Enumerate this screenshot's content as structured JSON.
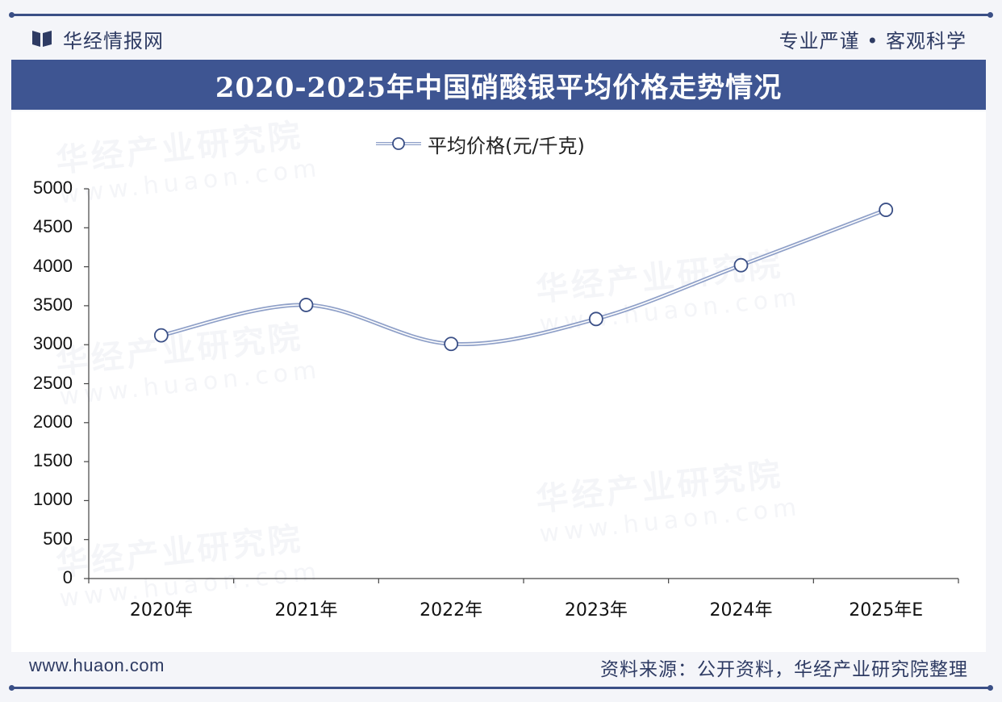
{
  "header": {
    "brand": "华经情报网",
    "slogan": "专业严谨 • 客观科学"
  },
  "title": "2020-2025年中国硝酸银平均价格走势情况",
  "footer": {
    "website": "www.huaon.com",
    "source": "资料来源：公开资料，华经产业研究院整理"
  },
  "watermark": {
    "name": "华经产业研究院",
    "url": "www.huaon.com"
  },
  "colors": {
    "primary": "#3e5592",
    "line": "#8fa0c8",
    "marker_stroke": "#3a4f86"
  },
  "chart_data": {
    "type": "line",
    "categories": [
      "2020年",
      "2021年",
      "2022年",
      "2023年",
      "2024年",
      "2025年E"
    ],
    "series": [
      {
        "name": "平均价格(元/千克)",
        "values": [
          3120,
          3510,
          3010,
          3330,
          4020,
          4730
        ]
      }
    ],
    "ylim": [
      0,
      5000
    ],
    "yticks": [
      0,
      500,
      1000,
      1500,
      2000,
      2500,
      3000,
      3500,
      4000,
      4500,
      5000
    ],
    "legend_position": "top-center",
    "grid": false,
    "smooth": true
  }
}
